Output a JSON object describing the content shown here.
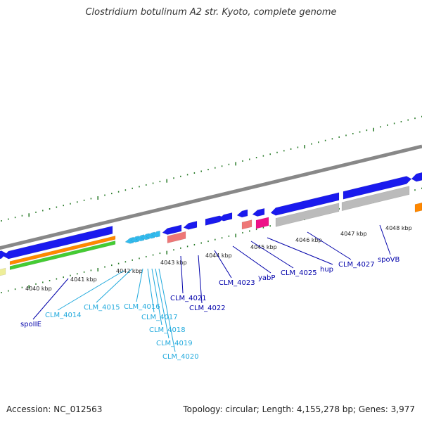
{
  "title": "Clostridium botulinum A2 str. Kyoto, complete genome",
  "footer": {
    "accession": "Accession: NC_012563",
    "summary": "Topology: circular; Length: 4,155,278 bp; Genes: 3,977"
  },
  "colors": {
    "backbone": "#888888",
    "cds_blue": "#1a1aee",
    "gene_cyan": "#33bbee",
    "trna_orange": "#ff8800",
    "rrna_green": "#44cc33",
    "grey_feature": "#bbbbbb",
    "salmon": "#ee7777",
    "magenta": "#ee1188",
    "tick_green": "#227722",
    "label_dark": "#0000aa",
    "label_light": "#22aadd"
  },
  "scale": {
    "unit": "kbp",
    "ticks": [
      "4040 kbp",
      "4041 kbp",
      "4042 kbp",
      "4043 kbp",
      "4044 kbp",
      "4045 kbp",
      "4046 kbp",
      "4047 kbp",
      "4048 kbp"
    ]
  },
  "genes": [
    {
      "label": "spoIIE",
      "style": "dark"
    },
    {
      "label": "CLM_4014",
      "style": "light"
    },
    {
      "label": "CLM_4015",
      "style": "light"
    },
    {
      "label": "CLM_4016",
      "style": "light"
    },
    {
      "label": "CLM_4017",
      "style": "light"
    },
    {
      "label": "CLM_4018",
      "style": "light"
    },
    {
      "label": "CLM_4019",
      "style": "light"
    },
    {
      "label": "CLM_4020",
      "style": "light"
    },
    {
      "label": "CLM_4021",
      "style": "dark"
    },
    {
      "label": "CLM_4022",
      "style": "dark"
    },
    {
      "label": "CLM_4023",
      "style": "dark"
    },
    {
      "label": "yabP",
      "style": "dark"
    },
    {
      "label": "CLM_4025",
      "style": "dark"
    },
    {
      "label": "hup",
      "style": "dark"
    },
    {
      "label": "CLM_4027",
      "style": "dark"
    },
    {
      "label": "spoVB",
      "style": "dark"
    }
  ]
}
